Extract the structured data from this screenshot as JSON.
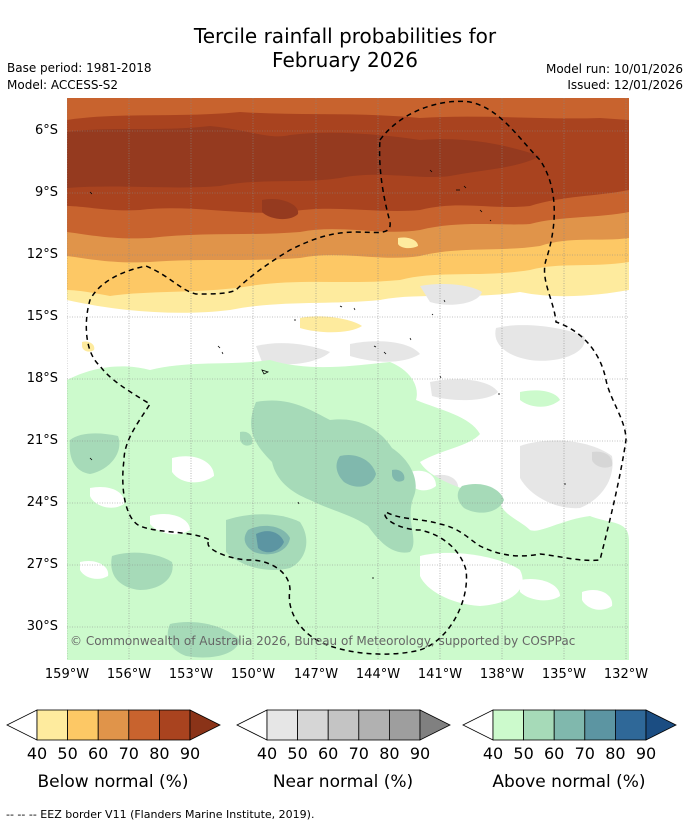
{
  "header": {
    "title_line1": "Tercile rainfall probabilities for",
    "title_line2": "February 2026",
    "base_period": "Base period: 1981-2018",
    "model": "Model: ACCESS-S2",
    "model_run": "Model run: 10/01/2026",
    "issued": "Issued: 12/01/2026"
  },
  "map": {
    "lat_labels": [
      "6°S",
      "9°S",
      "12°S",
      "15°S",
      "18°S",
      "21°S",
      "24°S",
      "27°S",
      "30°S"
    ],
    "lon_labels": [
      "159°W",
      "156°W",
      "153°W",
      "150°W",
      "147°W",
      "144°W",
      "141°W",
      "138°W",
      "135°W",
      "132°W"
    ],
    "copyright": "© Commonwealth of Australia 2026, Bureau of Meteorology, supported by COSPPac"
  },
  "legends": [
    {
      "title": "Below normal (%)",
      "ticks": [
        "40",
        "50",
        "60",
        "70",
        "80",
        "90"
      ],
      "colors": [
        "#ffffff",
        "#feeb9e",
        "#fdc865",
        "#e0944a",
        "#c8632e",
        "#a9431f",
        "#8a3318"
      ]
    },
    {
      "title": "Near normal (%)",
      "ticks": [
        "40",
        "50",
        "60",
        "70",
        "80",
        "90"
      ],
      "colors": [
        "#ffffff",
        "#e6e6e6",
        "#d6d6d6",
        "#c4c4c4",
        "#b1b1b1",
        "#9e9e9e",
        "#808080"
      ]
    },
    {
      "title": "Above normal (%)",
      "ticks": [
        "40",
        "50",
        "60",
        "70",
        "80",
        "90"
      ],
      "colors": [
        "#ffffff",
        "#ccfacc",
        "#a6dab8",
        "#80b8ad",
        "#5c95a2",
        "#2f6898",
        "#1b4d82"
      ]
    }
  ],
  "footnote": "-- -- -- EEZ border V11 (Flanders Marine Institute, 2019)."
}
